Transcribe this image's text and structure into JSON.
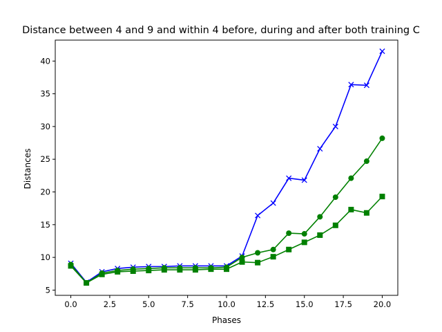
{
  "chart_data": {
    "type": "line",
    "title": "Distance between 4 and 9 and within 4 before, during and after both training C",
    "xlabel": "Phases",
    "ylabel": "Distances",
    "xlim": [
      -1,
      21
    ],
    "ylim": [
      4.2,
      43.2
    ],
    "xticks": [
      0.0,
      2.5,
      5.0,
      7.5,
      10.0,
      12.5,
      15.0,
      17.5,
      20.0
    ],
    "xtick_labels": [
      "0.0",
      "2.5",
      "5.0",
      "7.5",
      "10.0",
      "12.5",
      "15.0",
      "17.5",
      "20.0"
    ],
    "yticks": [
      5,
      10,
      15,
      20,
      25,
      30,
      35,
      40
    ],
    "ytick_labels": [
      "5",
      "10",
      "15",
      "20",
      "25",
      "30",
      "35",
      "40"
    ],
    "grid": false,
    "x": [
      0,
      1,
      2,
      3,
      4,
      5,
      6,
      7,
      8,
      9,
      10,
      11,
      12,
      13,
      14,
      15,
      16,
      17,
      18,
      19,
      20
    ],
    "series": [
      {
        "color": "#0000ff",
        "marker": "x",
        "values": [
          9.1,
          6.2,
          7.8,
          8.3,
          8.5,
          8.6,
          8.6,
          8.7,
          8.7,
          8.7,
          8.7,
          10.2,
          16.4,
          18.3,
          22.1,
          21.8,
          26.6,
          30.0,
          36.4,
          36.3,
          41.5
        ]
      },
      {
        "color": "#008000",
        "marker": "circle",
        "values": [
          8.9,
          6.1,
          7.6,
          8.0,
          8.2,
          8.3,
          8.4,
          8.4,
          8.4,
          8.4,
          8.5,
          10.0,
          10.7,
          11.2,
          13.7,
          13.6,
          16.2,
          19.2,
          22.1,
          24.7,
          28.2
        ]
      },
      {
        "color": "#008000",
        "marker": "square",
        "values": [
          8.7,
          6.1,
          7.4,
          7.8,
          7.9,
          8.0,
          8.1,
          8.1,
          8.1,
          8.2,
          8.2,
          9.3,
          9.2,
          10.1,
          11.2,
          12.3,
          13.4,
          14.9,
          17.3,
          16.8,
          19.3
        ]
      }
    ]
  }
}
